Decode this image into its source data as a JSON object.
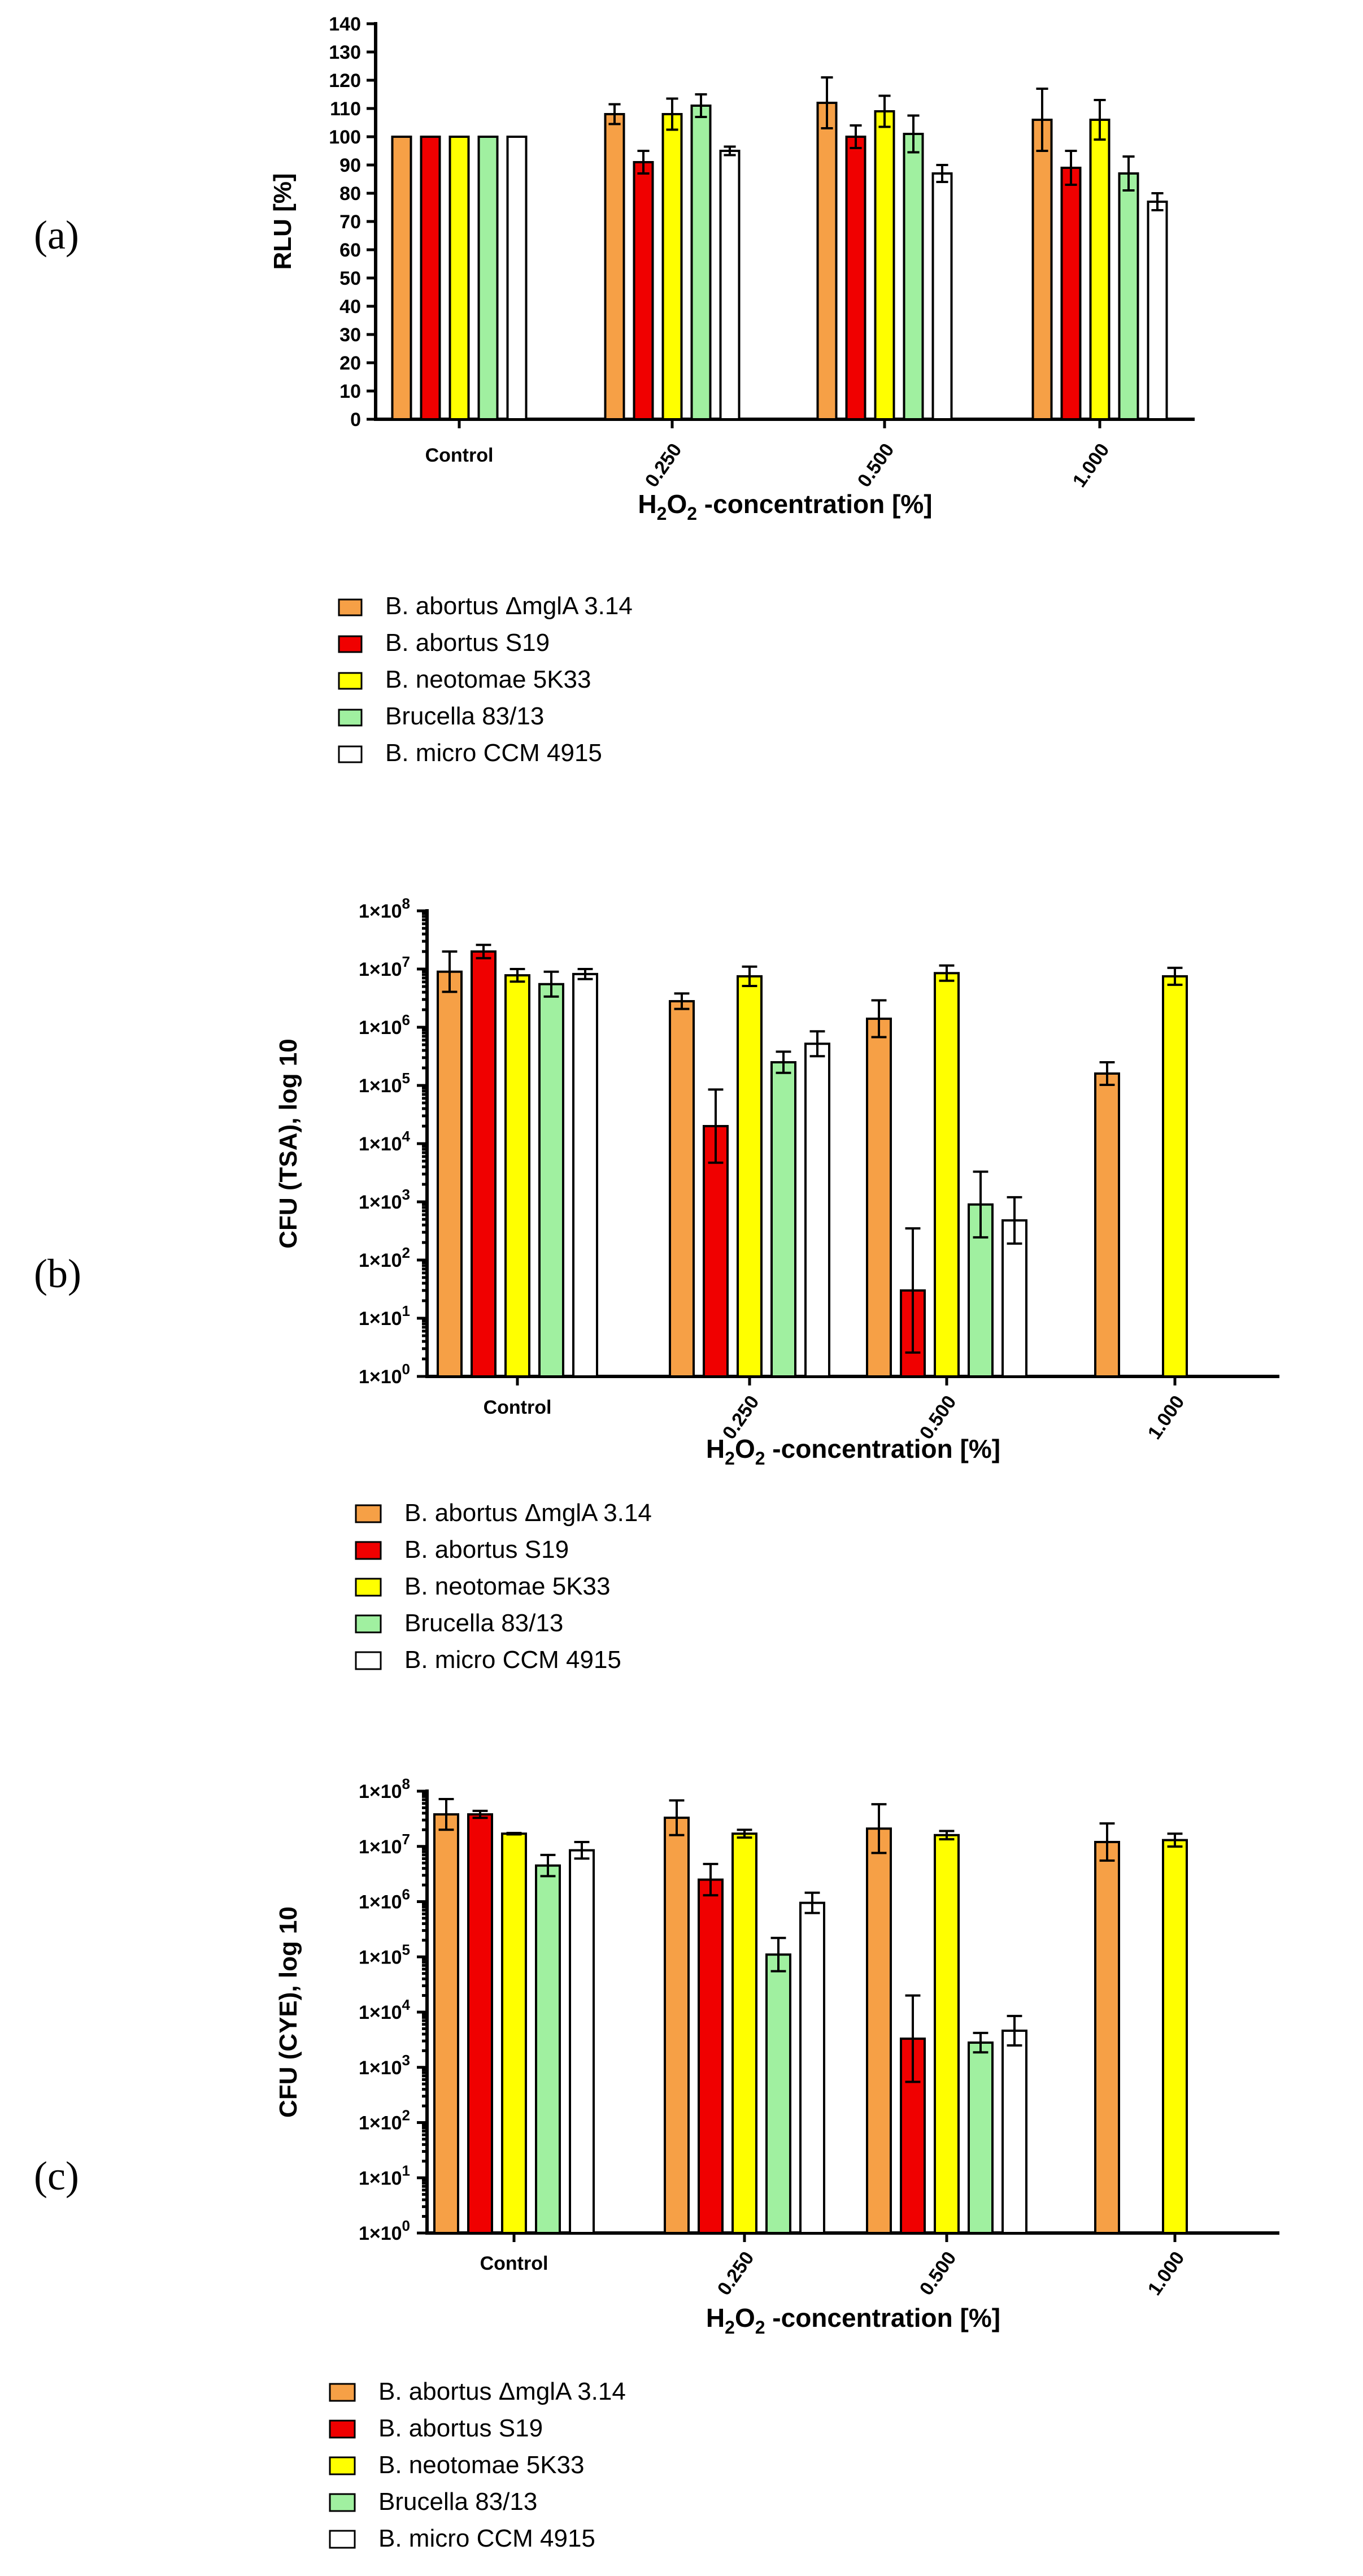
{
  "colors": {
    "B. abortus ΔmglA 3.14": "#f6a046",
    "B. abortus S19": "#f00000",
    "B. neotomae 5K33": "#ffff00",
    "Brucella 83/13": "#a0f0a0",
    "B. micro CCM 4915": "#ffffff"
  },
  "chart_data": [
    {
      "panel_label": "(a)",
      "type": "bar",
      "scale": "linear",
      "ylabel": "RLU [%]",
      "xlabel_parts": [
        "H",
        "2",
        "O",
        "2",
        " -concentration [%]"
      ],
      "categories": [
        "Control",
        "0.250",
        "0.500",
        "1.000"
      ],
      "ylim": [
        0,
        140
      ],
      "yticks": [
        "0",
        "10",
        "20",
        "30",
        "40",
        "50",
        "60",
        "70",
        "80",
        "90",
        "100",
        "110",
        "120",
        "130",
        "140"
      ],
      "series": [
        {
          "name": "B. abortus ΔmglA 3.14",
          "values": [
            100,
            108,
            112,
            106
          ],
          "errors": [
            0,
            3.5,
            9,
            11
          ]
        },
        {
          "name": "B. abortus S19",
          "values": [
            100,
            91,
            100,
            89
          ],
          "errors": [
            0,
            4,
            4,
            6
          ]
        },
        {
          "name": "B. neotomae 5K33",
          "values": [
            100,
            108,
            109,
            106
          ],
          "errors": [
            0,
            5.5,
            5.5,
            7
          ]
        },
        {
          "name": "Brucella 83/13",
          "values": [
            100,
            111,
            101,
            87
          ],
          "errors": [
            0,
            4,
            6.5,
            6
          ]
        },
        {
          "name": "B. micro CCM 4915",
          "values": [
            100,
            95,
            87,
            77
          ],
          "errors": [
            0,
            1.5,
            3,
            3
          ]
        }
      ]
    },
    {
      "panel_label": "(b)",
      "type": "bar",
      "scale": "log",
      "ylabel": "CFU (TSA), log 10",
      "xlabel_parts": [
        "H",
        "2",
        "O",
        "2",
        " -concentration [%]"
      ],
      "categories": [
        "Control",
        "0.250",
        "0.500",
        "1.000"
      ],
      "ylim_exponents": [
        0,
        8
      ],
      "ytick_base": "1×10",
      "yticks_exp": [
        "0",
        "1",
        "2",
        "3",
        "4",
        "5",
        "6",
        "7",
        "8"
      ],
      "series": [
        {
          "name": "B. abortus ΔmglA 3.14",
          "values": [
            9000000,
            2800000,
            1400000,
            160000
          ],
          "err_hi": [
            20000000,
            3800000,
            2900000,
            250000
          ]
        },
        {
          "name": "B. abortus S19",
          "values": [
            20000000,
            20000,
            30,
            null
          ],
          "err_hi": [
            26000000,
            85000,
            350,
            null
          ]
        },
        {
          "name": "B. neotomae 5K33",
          "values": [
            7800000,
            7500000,
            8500000,
            7500000
          ],
          "err_hi": [
            10000000,
            11000000,
            11500000,
            10500000
          ]
        },
        {
          "name": "Brucella 83/13",
          "values": [
            5500000,
            250000,
            900,
            null
          ],
          "err_hi": [
            9000000,
            380000,
            3300,
            null
          ]
        },
        {
          "name": "B. micro CCM 4915",
          "values": [
            8200000,
            520000,
            480,
            null
          ],
          "err_hi": [
            10000000,
            850000,
            1200,
            null
          ]
        }
      ]
    },
    {
      "panel_label": "(c)",
      "type": "bar",
      "scale": "log",
      "ylabel": "CFU (CYE), log 10",
      "xlabel_parts": [
        "H",
        "2",
        "O",
        "2",
        " -concentration [%]"
      ],
      "categories": [
        "Control",
        "0.250",
        "0.500",
        "1.000"
      ],
      "ylim_exponents": [
        0,
        8
      ],
      "ytick_base": "1×10",
      "yticks_exp": [
        "0",
        "1",
        "2",
        "3",
        "4",
        "5",
        "6",
        "7",
        "8"
      ],
      "series": [
        {
          "name": "B. abortus ΔmglA 3.14",
          "values": [
            38000000,
            33000000,
            21000000,
            12000000
          ],
          "err_hi": [
            72000000,
            68000000,
            58000000,
            26000000
          ]
        },
        {
          "name": "B. abortus S19",
          "values": [
            38000000,
            2500000,
            3300,
            null
          ],
          "err_hi": [
            44000000,
            4800000,
            20000,
            null
          ]
        },
        {
          "name": "B. neotomae 5K33",
          "values": [
            17000000,
            17000000,
            16000000,
            13000000
          ],
          "err_hi": [
            17500000,
            20000000,
            19000000,
            17000000
          ]
        },
        {
          "name": "Brucella 83/13",
          "values": [
            4500000,
            110000,
            2800,
            null
          ],
          "err_hi": [
            7000000,
            220000,
            4200,
            null
          ]
        },
        {
          "name": "B. micro CCM 4915",
          "values": [
            8500000,
            950000,
            4600,
            null
          ],
          "err_hi": [
            12000000,
            1450000,
            8500,
            null
          ]
        }
      ]
    }
  ],
  "legends": [
    [
      "B. abortus ΔmglA 3.14",
      "B. abortus S19",
      "B. neotomae 5K33",
      "Brucella 83/13",
      "B. micro CCM 4915"
    ],
    [
      "B. abortus ΔmglA 3.14",
      "B. abortus S19",
      "B. neotomae 5K33",
      "Brucella 83/13",
      "B. micro CCM 4915"
    ],
    [
      "B. abortus ΔmglA 3.14",
      "B. abortus S19",
      "B. neotomae 5K33",
      "Brucella 83/13",
      "B. micro CCM 4915"
    ]
  ]
}
